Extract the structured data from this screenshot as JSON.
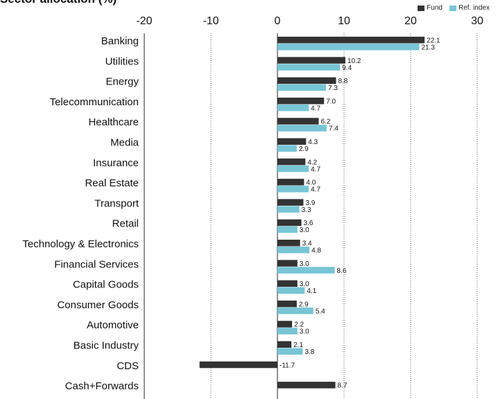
{
  "chart_data": {
    "type": "bar",
    "orientation": "horizontal",
    "title": "Sector allocation (%)",
    "categories": [
      "Banking",
      "Utilities",
      "Energy",
      "Telecommunication",
      "Healthcare",
      "Media",
      "Insurance",
      "Real Estate",
      "Transport",
      "Retail",
      "Technology & Electronics",
      "Financial Services",
      "Capital Goods",
      "Consumer Goods",
      "Automotive",
      "Basic Industry",
      "CDS",
      "Cash+Forwards"
    ],
    "series": [
      {
        "name": "Fund",
        "color": "#333333",
        "values": [
          22.1,
          10.2,
          8.8,
          7.0,
          6.2,
          4.3,
          4.2,
          4.0,
          3.9,
          3.6,
          3.4,
          3.0,
          3.0,
          2.9,
          2.2,
          2.1,
          -11.7,
          8.7
        ],
        "labels": [
          "22.1",
          "10.2",
          "8.8",
          "7.0",
          "6.2",
          "4.3",
          "4.2",
          "4.0",
          "3.9",
          "3.6",
          "3.4",
          "3.0",
          "3.0",
          "2.9",
          "2.2",
          "2.1",
          "-11.7",
          "8.7"
        ]
      },
      {
        "name": "Ref. index",
        "color": "#78c5d6",
        "values": [
          21.3,
          9.4,
          7.3,
          4.7,
          7.4,
          2.9,
          4.7,
          4.7,
          3.3,
          3.0,
          4.8,
          8.6,
          4.1,
          5.4,
          3.0,
          3.8,
          null,
          null
        ],
        "labels": [
          "21.3",
          "9.4",
          "7.3",
          "4.7",
          "7.4",
          "2.9",
          "4.7",
          "4.7",
          "3.3",
          "3.0",
          "4.8",
          "8.6",
          "4.1",
          "5.4",
          "3.0",
          "3.8",
          "",
          ""
        ]
      }
    ],
    "xlim": [
      -20,
      30
    ],
    "xticks": [
      -20,
      -10,
      0,
      10,
      20,
      30
    ],
    "xtick_labels": [
      "-20",
      "-10",
      "0",
      "10",
      "20",
      "30"
    ],
    "grid": "vertical dotted",
    "legend": "top-right"
  }
}
